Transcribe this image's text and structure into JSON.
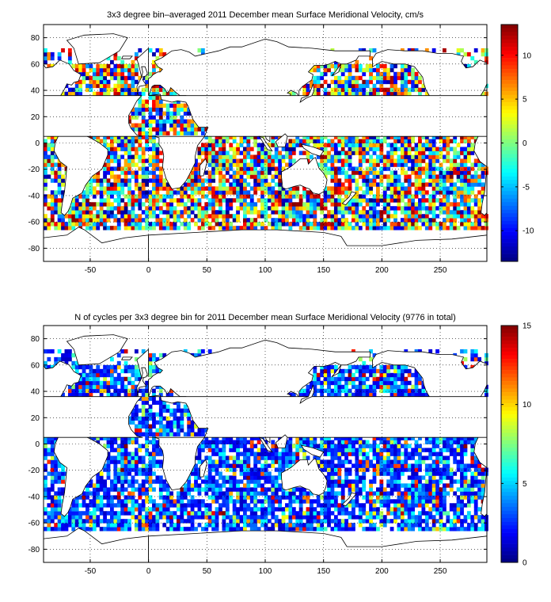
{
  "chart_data": [
    {
      "type": "heatmap",
      "title": "3x3 degree bin–averaged 2011 December mean Surface Meridional Velocity, cm/s",
      "xlabel": "",
      "ylabel": "",
      "xlim": [
        -90,
        290
      ],
      "ylim": [
        -90,
        90
      ],
      "x_ticks": [
        "-50",
        "0",
        "50",
        "100",
        "150",
        "200",
        "250"
      ],
      "y_ticks": [
        "80",
        "60",
        "40",
        "20",
        "0",
        "-20",
        "-40",
        "-60",
        "-80"
      ],
      "grid": true,
      "bin_size_deg": 3,
      "colorbar": {
        "range": [
          -13.5,
          13.5
        ],
        "ticks": [
          "10",
          "5",
          "0",
          "-5",
          "-10"
        ],
        "colormap": "jet"
      }
    },
    {
      "type": "heatmap",
      "title": "N of cycles per 3x3 degree bin for 2011 December mean Surface Meridional Velocity (9776 in total)",
      "xlabel": "",
      "ylabel": "",
      "xlim": [
        -90,
        290
      ],
      "ylim": [
        -90,
        90
      ],
      "x_ticks": [
        "-50",
        "0",
        "50",
        "100",
        "150",
        "200",
        "250"
      ],
      "y_ticks": [
        "80",
        "60",
        "40",
        "20",
        "0",
        "-20",
        "-40",
        "-60",
        "-80"
      ],
      "grid": true,
      "bin_size_deg": 3,
      "total_count": 9776,
      "colorbar": {
        "range": [
          0,
          15
        ],
        "ticks": [
          "15",
          "10",
          "5",
          "0"
        ],
        "colormap": "jet"
      }
    }
  ]
}
